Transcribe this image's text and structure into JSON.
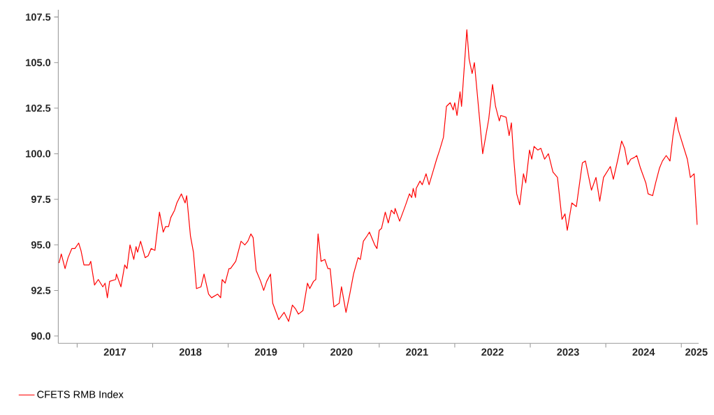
{
  "chart_data": {
    "type": "line",
    "x": [
      2016.76,
      2016.79,
      2016.84,
      2016.88,
      2016.93,
      2016.97,
      2017.02,
      2017.05,
      2017.09,
      2017.16,
      2017.18,
      2017.23,
      2017.28,
      2017.34,
      2017.37,
      2017.4,
      2017.43,
      2017.51,
      2017.52,
      2017.58,
      2017.63,
      2017.66,
      2017.7,
      2017.75,
      2017.78,
      2017.8,
      2017.84,
      2017.9,
      2017.94,
      2017.98,
      2018.03,
      2018.09,
      2018.14,
      2018.17,
      2018.21,
      2018.24,
      2018.29,
      2018.32,
      2018.38,
      2018.43,
      2018.45,
      2018.5,
      2018.54,
      2018.58,
      2018.64,
      2018.68,
      2018.74,
      2018.78,
      2018.86,
      2018.9,
      2018.92,
      2018.96,
      2019.01,
      2019.03,
      2019.1,
      2019.17,
      2019.22,
      2019.26,
      2019.3,
      2019.33,
      2019.37,
      2019.43,
      2019.47,
      2019.51,
      2019.56,
      2019.59,
      2019.67,
      2019.74,
      2019.8,
      2019.85,
      2019.89,
      2019.93,
      2019.99,
      2020.05,
      2020.08,
      2020.13,
      2020.16,
      2020.19,
      2020.23,
      2020.28,
      2020.32,
      2020.35,
      2020.4,
      2020.47,
      2020.5,
      2020.56,
      2020.61,
      2020.66,
      2020.72,
      2020.75,
      2020.79,
      2020.84,
      2020.87,
      2020.94,
      2020.97,
      2021.0,
      2021.03,
      2021.08,
      2021.12,
      2021.16,
      2021.2,
      2021.21,
      2021.27,
      2021.35,
      2021.4,
      2021.43,
      2021.45,
      2021.48,
      2021.49,
      2021.54,
      2021.57,
      2021.62,
      2021.66,
      2021.71,
      2021.76,
      2021.8,
      2021.85,
      2021.89,
      2021.94,
      2021.98,
      2022.0,
      2022.03,
      2022.07,
      2022.09,
      2022.16,
      2022.19,
      2022.23,
      2022.26,
      2022.32,
      2022.37,
      2022.45,
      2022.5,
      2022.54,
      2022.59,
      2022.61,
      2022.68,
      2022.72,
      2022.75,
      2022.78,
      2022.82,
      2022.86,
      2022.91,
      2022.94,
      2022.99,
      2023.02,
      2023.05,
      2023.1,
      2023.14,
      2023.19,
      2023.24,
      2023.3,
      2023.36,
      2023.42,
      2023.46,
      2023.49,
      2023.55,
      2023.61,
      2023.69,
      2023.73,
      2023.81,
      2023.87,
      2023.92,
      2023.97,
      2024.06,
      2024.1,
      2024.16,
      2024.21,
      2024.25,
      2024.29,
      2024.33,
      2024.38,
      2024.41,
      2024.46,
      2024.53,
      2024.56,
      2024.62,
      2024.66,
      2024.71,
      2024.75,
      2024.8,
      2024.85,
      2024.89,
      2024.93,
      2024.96,
      2025.02,
      2025.08,
      2025.12,
      2025.17,
      2025.21
    ],
    "series": [
      {
        "name": "CFETS RMB Index",
        "color": "#ff0000",
        "values": [
          94.0,
          94.5,
          93.7,
          94.3,
          94.8,
          94.8,
          95.1,
          94.7,
          93.9,
          93.9,
          94.1,
          92.8,
          93.1,
          92.7,
          92.9,
          92.1,
          93.0,
          93.1,
          93.4,
          92.7,
          93.9,
          93.7,
          95.0,
          94.2,
          94.9,
          94.6,
          95.2,
          94.3,
          94.4,
          94.8,
          94.7,
          96.8,
          95.7,
          96.0,
          96.0,
          96.5,
          96.9,
          97.3,
          97.8,
          97.3,
          97.7,
          95.5,
          94.6,
          92.6,
          92.7,
          93.4,
          92.3,
          92.1,
          92.3,
          92.1,
          93.1,
          92.9,
          93.7,
          93.7,
          94.1,
          95.2,
          95.0,
          95.2,
          95.6,
          95.4,
          93.6,
          93.0,
          92.5,
          93.0,
          93.4,
          91.8,
          90.9,
          91.3,
          90.8,
          91.7,
          91.5,
          91.2,
          91.4,
          92.9,
          92.6,
          93.0,
          93.1,
          95.6,
          94.1,
          94.2,
          93.7,
          93.7,
          91.6,
          91.8,
          92.7,
          91.3,
          92.3,
          93.4,
          94.3,
          94.2,
          95.2,
          95.5,
          95.7,
          95.0,
          94.8,
          95.8,
          95.9,
          96.8,
          96.2,
          96.9,
          96.7,
          97.0,
          96.3,
          97.2,
          97.8,
          97.6,
          98.1,
          97.6,
          98.1,
          98.5,
          98.3,
          98.9,
          98.3,
          99.0,
          99.7,
          100.2,
          100.9,
          102.6,
          102.8,
          102.4,
          102.8,
          102.1,
          103.4,
          102.6,
          106.8,
          105.2,
          104.4,
          105.0,
          102.3,
          100.0,
          101.9,
          103.8,
          102.6,
          101.8,
          102.1,
          102.0,
          101.0,
          101.7,
          99.8,
          97.8,
          97.2,
          98.9,
          98.4,
          100.2,
          99.7,
          100.4,
          100.2,
          100.3,
          99.7,
          100.0,
          99.0,
          98.7,
          96.4,
          96.7,
          95.8,
          97.3,
          97.1,
          99.5,
          99.6,
          98.0,
          98.7,
          97.4,
          98.7,
          99.3,
          98.6,
          99.7,
          100.7,
          100.3,
          99.4,
          99.7,
          99.8,
          99.9,
          99.2,
          98.4,
          97.8,
          97.7,
          98.4,
          99.2,
          99.6,
          99.9,
          99.6,
          101.0,
          102.0,
          101.3,
          100.5,
          99.7,
          98.7,
          98.9,
          96.1
        ]
      }
    ],
    "xlim": [
      2016.75,
      2025.23
    ],
    "xticks": [
      {
        "value": 2017,
        "label": null
      },
      {
        "value": 2018,
        "label": null
      },
      {
        "value": 2019,
        "label": null
      },
      {
        "value": 2020,
        "label": null
      },
      {
        "value": 2021,
        "label": null
      },
      {
        "value": 2022,
        "label": null
      },
      {
        "value": 2023,
        "label": null
      },
      {
        "value": 2024,
        "label": null
      },
      {
        "value": 2025,
        "label": null
      },
      {
        "value": 2017.5,
        "label": "2017"
      },
      {
        "value": 2018.5,
        "label": "2018"
      },
      {
        "value": 2019.5,
        "label": "2019"
      },
      {
        "value": 2020.5,
        "label": "2020"
      },
      {
        "value": 2021.5,
        "label": "2021"
      },
      {
        "value": 2022.5,
        "label": "2022"
      },
      {
        "value": 2023.5,
        "label": "2023"
      },
      {
        "value": 2024.5,
        "label": "2024"
      },
      {
        "value": 2025.2,
        "label": "2025"
      }
    ],
    "ylim": [
      89.6,
      107.9
    ],
    "yticks": [
      {
        "value": 90,
        "label": "90.0"
      },
      92.5,
      {
        "value": 95,
        "label": "95.0"
      },
      97.5,
      {
        "value": 100,
        "label": "100.0"
      },
      102.5,
      {
        "value": 105,
        "label": "105.0"
      },
      107.5
    ],
    "legend": "bottom",
    "grid": false,
    "line_style": "solid",
    "marker": "none"
  }
}
